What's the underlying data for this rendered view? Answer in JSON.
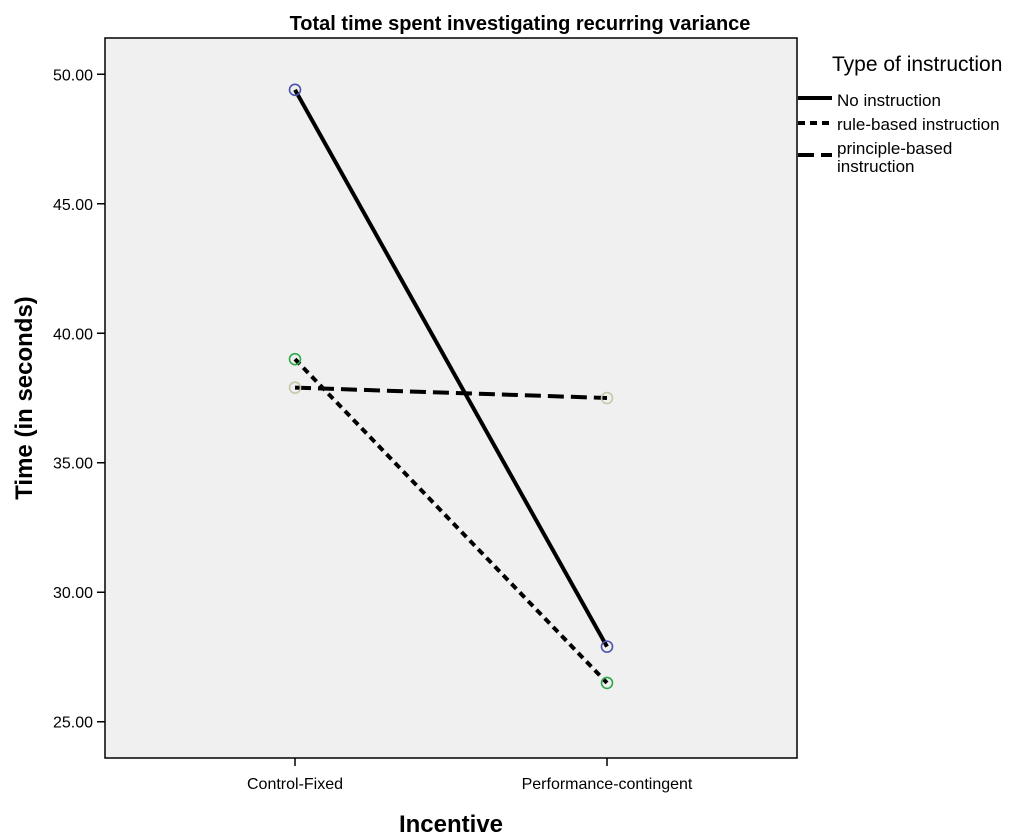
{
  "chart_data": {
    "type": "line",
    "title": "Total time spent investigating recurring variance",
    "xlabel": "Incentive",
    "ylabel": "Time (in seconds)",
    "categories": [
      "Control-Fixed",
      "Performance-contingent"
    ],
    "ylim": [
      23.6,
      51.4
    ],
    "yticks": [
      "25.00",
      "30.00",
      "35.00",
      "40.00",
      "45.00",
      "50.00"
    ],
    "grid": false,
    "legend": {
      "title": "Type of instruction",
      "placement": "right",
      "entries": [
        "No instruction",
        "rule-based instruction",
        "principle-based instruction"
      ]
    },
    "series": [
      {
        "name": "No instruction",
        "values": [
          49.4,
          27.9
        ],
        "line_style": "solid",
        "marker_color": "#4a52b0"
      },
      {
        "name": "rule-based instruction",
        "values": [
          39.0,
          26.5
        ],
        "line_style": "dotted",
        "marker_color": "#2ea84a"
      },
      {
        "name": "principle-based instruction",
        "values": [
          37.9,
          37.5
        ],
        "line_style": "dashed",
        "marker_color": "#c8c8a8"
      }
    ],
    "colors": {
      "background": "#f0f0f0",
      "line": "#000000"
    }
  }
}
